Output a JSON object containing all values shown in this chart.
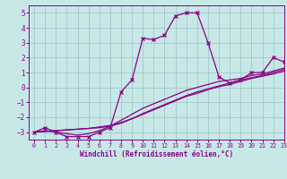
{
  "xlabel": "Windchill (Refroidissement éolien,°C)",
  "xlim": [
    -0.5,
    23
  ],
  "ylim": [
    -3.5,
    5.5
  ],
  "yticks": [
    -3,
    -2,
    -1,
    0,
    1,
    2,
    3,
    4,
    5
  ],
  "xticks": [
    0,
    1,
    2,
    3,
    4,
    5,
    6,
    7,
    8,
    9,
    10,
    11,
    12,
    13,
    14,
    15,
    16,
    17,
    18,
    19,
    20,
    21,
    22,
    23
  ],
  "bg_color": "#c8e8e8",
  "grid_color": "#a0c8c8",
  "line_color": "#880088",
  "lines": [
    {
      "x": [
        0,
        1,
        2,
        3,
        4,
        5,
        6,
        7,
        8,
        9,
        10,
        11,
        12,
        13,
        14,
        15,
        16,
        17,
        18,
        19,
        20,
        21,
        22,
        23
      ],
      "y": [
        -3.0,
        -2.7,
        -3.0,
        -3.3,
        -3.3,
        -3.3,
        -3.0,
        -2.7,
        -0.3,
        0.5,
        3.3,
        3.2,
        3.5,
        4.8,
        5.0,
        5.0,
        3.0,
        0.7,
        0.3,
        0.5,
        1.0,
        1.0,
        2.0,
        1.7
      ],
      "marker": "x",
      "ms": 3.5,
      "lw": 0.9
    },
    {
      "x": [
        0,
        1,
        2,
        3,
        4,
        5,
        6,
        7,
        8,
        9,
        10,
        11,
        12,
        13,
        14,
        15,
        16,
        17,
        18,
        19,
        20,
        21,
        22,
        23
      ],
      "y": [
        -3.0,
        -2.9,
        -3.0,
        -3.1,
        -3.2,
        -3.1,
        -2.9,
        -2.6,
        -2.2,
        -1.8,
        -1.4,
        -1.1,
        -0.8,
        -0.5,
        -0.2,
        0.0,
        0.2,
        0.4,
        0.5,
        0.6,
        0.8,
        0.9,
        1.1,
        1.3
      ],
      "marker": null,
      "ms": 0,
      "lw": 0.9
    },
    {
      "x": [
        0,
        1,
        2,
        3,
        4,
        5,
        6,
        7,
        8,
        9,
        10,
        11,
        12,
        13,
        14,
        15,
        16,
        17,
        18,
        19,
        20,
        21,
        22,
        23
      ],
      "y": [
        -3.0,
        -2.95,
        -2.9,
        -2.85,
        -2.8,
        -2.75,
        -2.7,
        -2.6,
        -2.4,
        -2.1,
        -1.8,
        -1.5,
        -1.2,
        -0.9,
        -0.6,
        -0.4,
        -0.15,
        0.05,
        0.2,
        0.4,
        0.6,
        0.75,
        0.9,
        1.1
      ],
      "marker": null,
      "ms": 0,
      "lw": 0.9
    },
    {
      "x": [
        0,
        1,
        2,
        3,
        4,
        5,
        6,
        7,
        8,
        9,
        10,
        11,
        12,
        13,
        14,
        15,
        16,
        17,
        18,
        19,
        20,
        21,
        22,
        23
      ],
      "y": [
        -3.0,
        -2.95,
        -2.9,
        -2.85,
        -2.8,
        -2.75,
        -2.65,
        -2.55,
        -2.35,
        -2.1,
        -1.75,
        -1.45,
        -1.15,
        -0.85,
        -0.55,
        -0.3,
        -0.1,
        0.1,
        0.3,
        0.5,
        0.65,
        0.8,
        1.0,
        1.2
      ],
      "marker": null,
      "ms": 0,
      "lw": 0.9
    }
  ]
}
